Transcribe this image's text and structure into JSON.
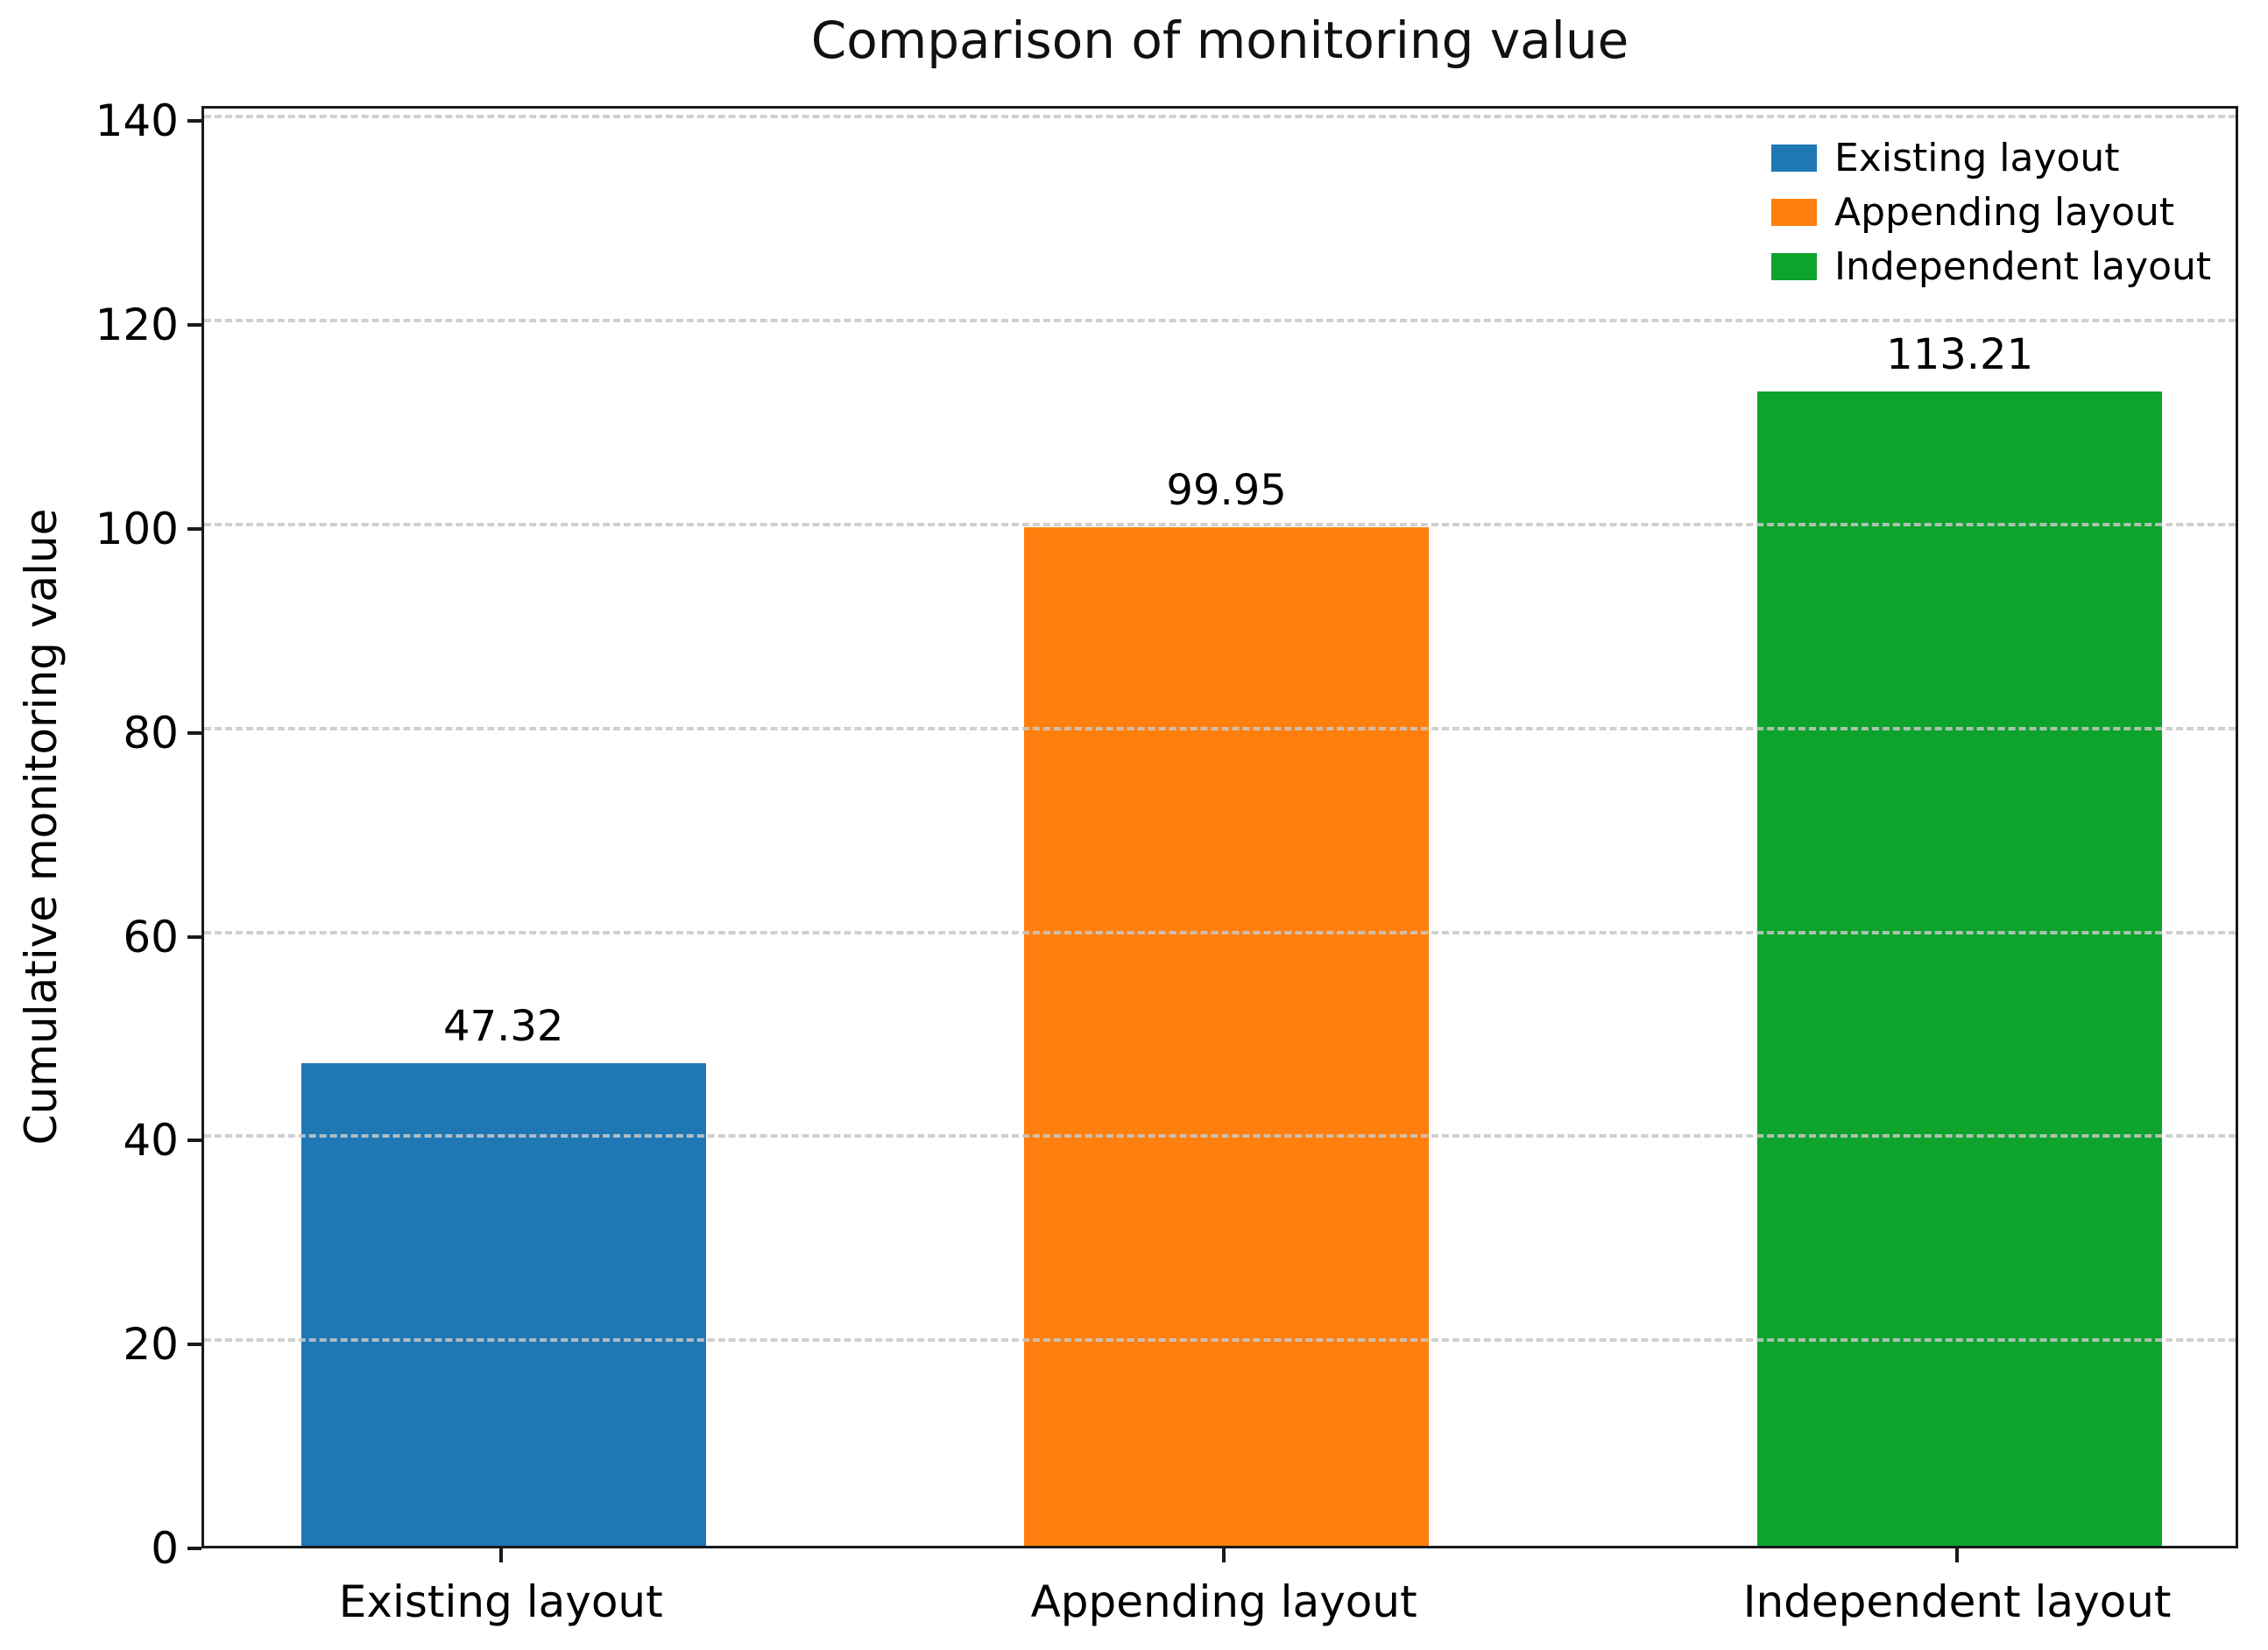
{
  "chart_data": {
    "type": "bar",
    "title": "Comparison of monitoring value",
    "xlabel": "",
    "ylabel": "Cumulative monitoring value",
    "categories": [
      "Existing layout",
      "Appending layout",
      "Independent layout"
    ],
    "values": [
      47.32,
      99.95,
      113.21
    ],
    "value_labels": [
      "47.32",
      "99.95",
      "113.21"
    ],
    "colors": [
      "#1f77b4",
      "#ff7f0e",
      "#0da32c"
    ],
    "ylim": [
      0,
      141.5
    ],
    "yticks": [
      0,
      20,
      40,
      60,
      80,
      100,
      120,
      140
    ],
    "grid": "horizontal dashed, light gray, drawn over bars",
    "legend": {
      "position": "upper right",
      "frame": false,
      "entries": [
        {
          "label": "Existing layout",
          "color": "#1f77b4"
        },
        {
          "label": "Appending layout",
          "color": "#ff7f0e"
        },
        {
          "label": "Independent layout",
          "color": "#0da32c"
        }
      ]
    }
  }
}
